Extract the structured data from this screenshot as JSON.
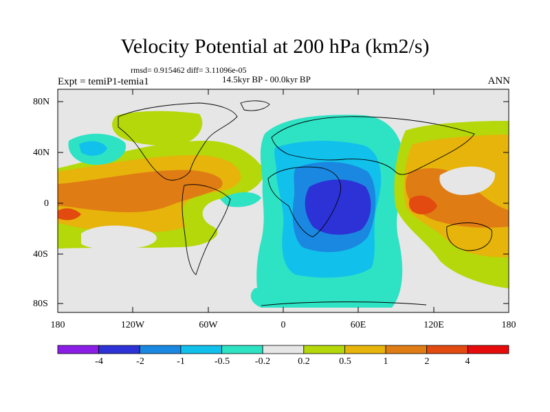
{
  "figure": {
    "title": "Velocity Potential at 200 hPa (km2/s)",
    "stats": "rmsd= 0.915462 diff= 3.11096e-05",
    "period": "14.5kyr BP - 00.0kyr BP",
    "experiment": "Expt = temiP1-temia1",
    "season": "ANN"
  },
  "axes": {
    "lat_labels": [
      "80N",
      "40N",
      "0",
      "40S",
      "80S"
    ],
    "lon_labels": [
      "180",
      "120W",
      "60W",
      "0",
      "60E",
      "120E",
      "180"
    ]
  },
  "colorbar": {
    "labels": [
      "-4",
      "-2",
      "-1",
      "-0.5",
      "-0.2",
      "0.2",
      "0.5",
      "1",
      "2",
      "4"
    ],
    "colors": [
      "#8a1ee6",
      "#2c32d6",
      "#1a88e0",
      "#12c0ec",
      "#2ee2c4",
      "#e6e6e6",
      "#b4d80a",
      "#e6b40a",
      "#e07c14",
      "#e24a10",
      "#e60c0c"
    ]
  },
  "colors": {
    "land_outline": "#000000",
    "neutral": "#e6e6e6"
  }
}
